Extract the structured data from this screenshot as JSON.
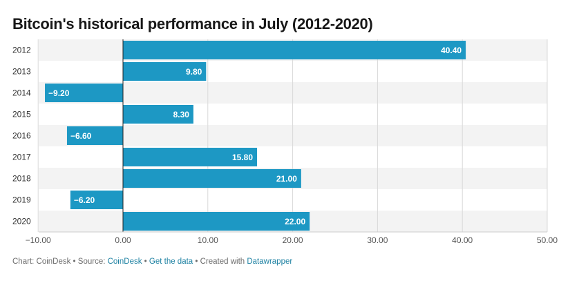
{
  "title": "Bitcoin's historical performance in July (2012-2020)",
  "chart_data": {
    "type": "bar",
    "orientation": "horizontal",
    "categories": [
      "2012",
      "2013",
      "2014",
      "2015",
      "2016",
      "2017",
      "2018",
      "2019",
      "2020"
    ],
    "values": [
      40.4,
      9.8,
      -9.2,
      8.3,
      -6.6,
      15.8,
      21.0,
      -6.2,
      22.0
    ],
    "data_labels": [
      "40.40",
      "9.80",
      "−9.20",
      "8.30",
      "−6.60",
      "15.80",
      "21.00",
      "−6.20",
      "22.00"
    ],
    "xlim": [
      -10,
      50
    ],
    "xticks": [
      -10,
      0,
      10,
      20,
      30,
      40,
      50
    ],
    "xtick_labels": [
      "−10.00",
      "0.00",
      "10.00",
      "20.00",
      "30.00",
      "40.00",
      "50.00"
    ],
    "grid": true,
    "bar_color": "#1d98c4",
    "alt_row_color": "#f3f3f3",
    "title": "Bitcoin's historical performance in July (2012-2020)",
    "xlabel": "",
    "ylabel": ""
  },
  "footer": {
    "prefix": "Chart: CoinDesk • Source: ",
    "source_link": "CoinDesk",
    "sep1": " • ",
    "data_link": "Get the data",
    "sep2": " • Created with ",
    "tool_link": "Datawrapper"
  }
}
